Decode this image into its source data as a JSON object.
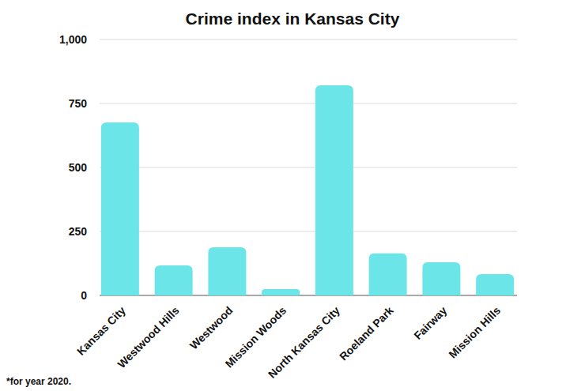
{
  "chart_data": {
    "type": "bar",
    "title": "Crime index in Kansas City",
    "categories": [
      "Kansas City",
      "Westwood Hills",
      "Westwood",
      "Mission Woods",
      "North Kansas City",
      "Roeland Park",
      "Fairway",
      "Mission Hills"
    ],
    "values": [
      676,
      117,
      188,
      25,
      821,
      164,
      130,
      83
    ],
    "color": "#6ce5e8",
    "ylim": [
      0,
      1000
    ],
    "yticks": [
      0,
      250,
      500,
      750,
      {
        "value": 1000,
        "label": "1,000"
      }
    ],
    "grid": true,
    "annotations": [
      "*for year 2020."
    ]
  }
}
